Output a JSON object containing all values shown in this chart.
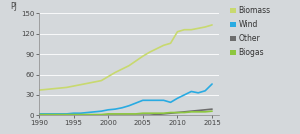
{
  "title": "",
  "ylabel": "PJ",
  "xlim": [
    1990,
    2016
  ],
  "ylim": [
    0,
    150
  ],
  "yticks": [
    0,
    30,
    60,
    90,
    120,
    150
  ],
  "xticks": [
    1990,
    1995,
    2000,
    2005,
    2010,
    2015
  ],
  "background_color": "#d4d8db",
  "plot_bg_color": "#d4d8db",
  "series": {
    "Biomass": {
      "color": "#c8d96f",
      "years": [
        1990,
        1991,
        1992,
        1993,
        1994,
        1995,
        1996,
        1997,
        1998,
        1999,
        2000,
        2001,
        2002,
        2003,
        2004,
        2005,
        2006,
        2007,
        2008,
        2009,
        2010,
        2011,
        2012,
        2013,
        2014,
        2015
      ],
      "values": [
        37,
        38,
        39,
        40,
        41,
        43,
        45,
        47,
        49,
        51,
        57,
        63,
        68,
        73,
        80,
        87,
        93,
        98,
        103,
        106,
        123,
        126,
        126,
        128,
        130,
        133
      ]
    },
    "Wind": {
      "color": "#29abe2",
      "years": [
        1990,
        1991,
        1992,
        1993,
        1994,
        1995,
        1996,
        1997,
        1998,
        1999,
        2000,
        2001,
        2002,
        2003,
        2004,
        2005,
        2006,
        2007,
        2008,
        2009,
        2010,
        2011,
        2012,
        2013,
        2014,
        2015
      ],
      "values": [
        2,
        2,
        2,
        2,
        2,
        3,
        3,
        4,
        5,
        6,
        8,
        9,
        11,
        14,
        18,
        22,
        22,
        22,
        22,
        19,
        25,
        30,
        35,
        33,
        36,
        46
      ]
    },
    "Other": {
      "color": "#6d6d6d",
      "years": [
        1990,
        1991,
        1992,
        1993,
        1994,
        1995,
        1996,
        1997,
        1998,
        1999,
        2000,
        2001,
        2002,
        2003,
        2004,
        2005,
        2006,
        2007,
        2008,
        2009,
        2010,
        2011,
        2012,
        2013,
        2014,
        2015
      ],
      "values": [
        0,
        0,
        0,
        0,
        0,
        0,
        0,
        0,
        0,
        0,
        0,
        0,
        0,
        0,
        0,
        0,
        0,
        1,
        2,
        3,
        4,
        5,
        6,
        7,
        8,
        9
      ]
    },
    "Biogas": {
      "color": "#8dc63f",
      "years": [
        1990,
        1991,
        1992,
        1993,
        1994,
        1995,
        1996,
        1997,
        1998,
        1999,
        2000,
        2001,
        2002,
        2003,
        2004,
        2005,
        2006,
        2007,
        2008,
        2009,
        2010,
        2011,
        2012,
        2013,
        2014,
        2015
      ],
      "values": [
        1,
        1,
        1,
        1,
        1,
        1,
        1,
        1,
        1,
        1,
        2,
        2,
        2,
        2,
        2,
        3,
        3,
        3,
        3,
        4,
        4,
        4,
        5,
        5,
        5,
        6
      ]
    }
  },
  "legend_order": [
    "Biomass",
    "Wind",
    "Other",
    "Biogas"
  ],
  "line_width": 1.2
}
